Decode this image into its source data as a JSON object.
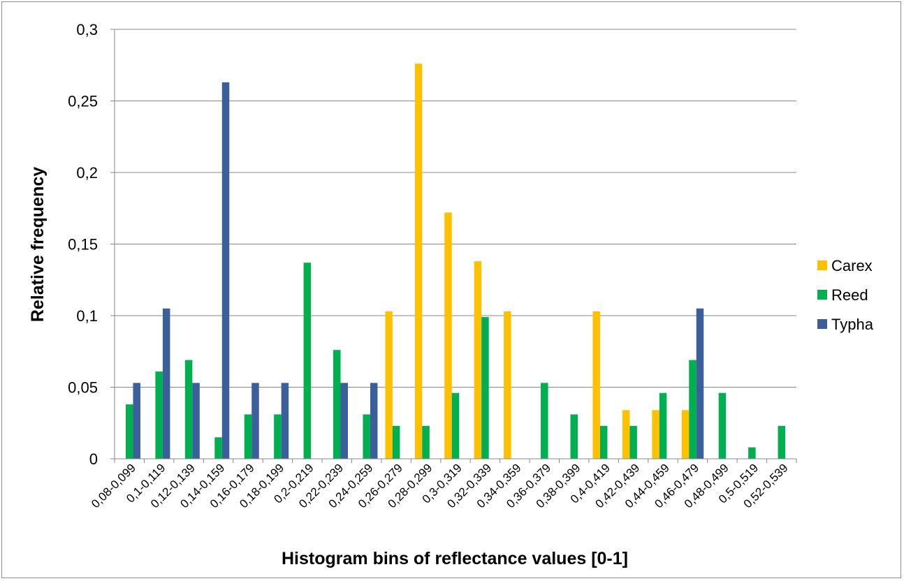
{
  "chart_data": {
    "type": "bar",
    "title": "",
    "xlabel": "Histogram bins of reflectance values [0-1]",
    "ylabel": "Relative frequency",
    "ylim": [
      0,
      0.3
    ],
    "yticks": [
      0,
      0.05,
      0.1,
      0.15,
      0.2,
      0.25,
      0.3
    ],
    "ytick_labels": [
      "0",
      "0,05",
      "0,1",
      "0,15",
      "0,2",
      "0,25",
      "0,3"
    ],
    "grid": true,
    "legend_position": "right",
    "categories": [
      "0,08-0,099",
      "0,1-0,119",
      "0,12-0,139",
      "0,14-0,159",
      "0,16-0,179",
      "0,18-0,199",
      "0,2-0,219",
      "0,22-0,239",
      "0,24-0,259",
      "0,26-0,279",
      "0,28-0,299",
      "0,3-0,319",
      "0,32-0,339",
      "0,34-0,359",
      "0,36-0,379",
      "0,38-0,399",
      "0,4-0,419",
      "0,42-0,439",
      "0,44-0,459",
      "0,46-0,479",
      "0,48-0,499",
      "0,5-0,519",
      "0,52-0,539"
    ],
    "series": [
      {
        "name": "Carex",
        "color": "#FFC000",
        "values": [
          0,
          0,
          0,
          0,
          0,
          0,
          0,
          0,
          0,
          0.103,
          0.276,
          0.172,
          0.138,
          0.103,
          0,
          0,
          0.103,
          0.034,
          0.034,
          0.034,
          0,
          0,
          0
        ]
      },
      {
        "name": "Reed",
        "color": "#00B050",
        "values": [
          0.038,
          0.061,
          0.069,
          0.015,
          0.031,
          0.031,
          0.137,
          0.076,
          0.031,
          0.023,
          0.023,
          0.046,
          0.099,
          0,
          0.053,
          0.031,
          0.023,
          0.023,
          0.046,
          0.069,
          0.046,
          0.008,
          0.023
        ]
      },
      {
        "name": "Typha",
        "color": "#3A5F9B",
        "values": [
          0.053,
          0.105,
          0.053,
          0.263,
          0.053,
          0.053,
          0,
          0.053,
          0.053,
          0,
          0,
          0,
          0,
          0,
          0,
          0,
          0,
          0,
          0,
          0.105,
          0,
          0,
          0
        ]
      }
    ]
  }
}
